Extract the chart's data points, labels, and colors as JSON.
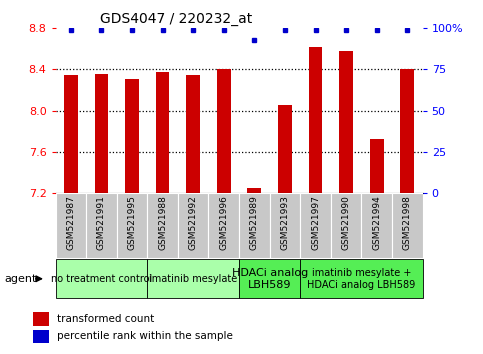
{
  "title": "GDS4047 / 220232_at",
  "samples": [
    "GSM521987",
    "GSM521991",
    "GSM521995",
    "GSM521988",
    "GSM521992",
    "GSM521996",
    "GSM521989",
    "GSM521993",
    "GSM521997",
    "GSM521990",
    "GSM521994",
    "GSM521998"
  ],
  "bar_values": [
    8.35,
    8.36,
    8.31,
    8.38,
    8.35,
    8.4,
    7.25,
    8.05,
    8.62,
    8.58,
    7.72,
    8.4
  ],
  "percentile_values": [
    99,
    99,
    99,
    99,
    99,
    99,
    93,
    99,
    99,
    99,
    99,
    99
  ],
  "bar_color": "#cc0000",
  "dot_color": "#0000cc",
  "ylim_left": [
    7.2,
    8.8
  ],
  "ylim_right": [
    0,
    100
  ],
  "yticks_left": [
    7.2,
    7.6,
    8.0,
    8.4,
    8.8
  ],
  "yticks_right": [
    0,
    25,
    50,
    75,
    100
  ],
  "sample_bg_color": "#c8c8c8",
  "sample_border_color": "#ffffff",
  "legend_bar_label": "transformed count",
  "legend_dot_label": "percentile rank within the sample",
  "bar_width": 0.45,
  "groups": [
    {
      "label": "no treatment control",
      "start": 0,
      "end": 2,
      "color": "#aaffaa",
      "fontsize": 7
    },
    {
      "label": "imatinib mesylate",
      "start": 3,
      "end": 5,
      "color": "#aaffaa",
      "fontsize": 7
    },
    {
      "label": "HDACi analog\nLBH589",
      "start": 6,
      "end": 7,
      "color": "#55ee55",
      "fontsize": 8
    },
    {
      "label": "imatinib mesylate +\nHDACi analog LBH589",
      "start": 8,
      "end": 11,
      "color": "#55ee55",
      "fontsize": 7
    }
  ]
}
